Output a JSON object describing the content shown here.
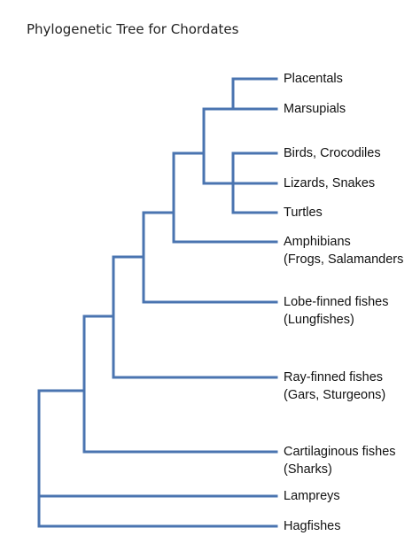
{
  "title": "Phylogenetic Tree for Chordates",
  "branch_color": "#4a74b0",
  "taxa": {
    "placentals": "Placentals",
    "marsupials": "Marsupials",
    "birds": "Birds, Crocodiles",
    "lizards": "Lizards, Snakes",
    "turtles": "Turtles",
    "amphibians": {
      "name": "Amphibians",
      "examples": "(Frogs, Salamanders"
    },
    "lobe_finned": {
      "name": "Lobe-finned fishes",
      "examples": "(Lungfishes)"
    },
    "ray_finned": {
      "name": "Ray-finned fishes",
      "examples": "(Gars, Sturgeons)"
    },
    "cartilaginous": {
      "name": "Cartilaginous fishes",
      "examples": "(Sharks)"
    },
    "lampreys": "Lampreys",
    "hagfishes": "Hagfishes"
  }
}
